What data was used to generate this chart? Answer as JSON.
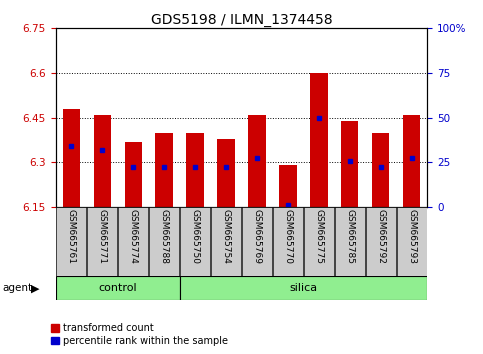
{
  "title": "GDS5198 / ILMN_1374458",
  "samples": [
    "GSM665761",
    "GSM665771",
    "GSM665774",
    "GSM665788",
    "GSM665750",
    "GSM665754",
    "GSM665769",
    "GSM665770",
    "GSM665775",
    "GSM665785",
    "GSM665792",
    "GSM665793"
  ],
  "groups": [
    "control",
    "control",
    "control",
    "control",
    "silica",
    "silica",
    "silica",
    "silica",
    "silica",
    "silica",
    "silica",
    "silica"
  ],
  "bar_bottoms": [
    6.15,
    6.15,
    6.15,
    6.15,
    6.15,
    6.15,
    6.15,
    6.15,
    6.15,
    6.15,
    6.15,
    6.15
  ],
  "bar_tops": [
    6.48,
    6.46,
    6.37,
    6.4,
    6.4,
    6.38,
    6.46,
    6.29,
    6.6,
    6.44,
    6.4,
    6.46
  ],
  "percentile_vals": [
    6.355,
    6.34,
    6.285,
    6.285,
    6.285,
    6.285,
    6.315,
    6.158,
    6.45,
    6.305,
    6.285,
    6.315
  ],
  "ylim_left": [
    6.15,
    6.75
  ],
  "ylim_right": [
    0,
    100
  ],
  "yticks_left": [
    6.15,
    6.3,
    6.45,
    6.6,
    6.75
  ],
  "ytick_labels_left": [
    "6.15",
    "6.3",
    "6.45",
    "6.6",
    "6.75"
  ],
  "yticks_right": [
    0,
    25,
    50,
    75,
    100
  ],
  "ytick_labels_right": [
    "0",
    "25",
    "50",
    "75",
    "100%"
  ],
  "bar_color": "#cc0000",
  "percentile_color": "#0000cc",
  "control_color": "#90ee90",
  "silica_color": "#90ee90",
  "grid_color": "#000000",
  "label_bg_color": "#cccccc",
  "left_tick_color": "#cc0000",
  "right_tick_color": "#0000cc",
  "legend_red_label": "transformed count",
  "legend_blue_label": "percentile rank within the sample",
  "agent_label": "agent",
  "group_label_control": "control",
  "group_label_silica": "silica",
  "n_control": 4,
  "n_silica": 8
}
